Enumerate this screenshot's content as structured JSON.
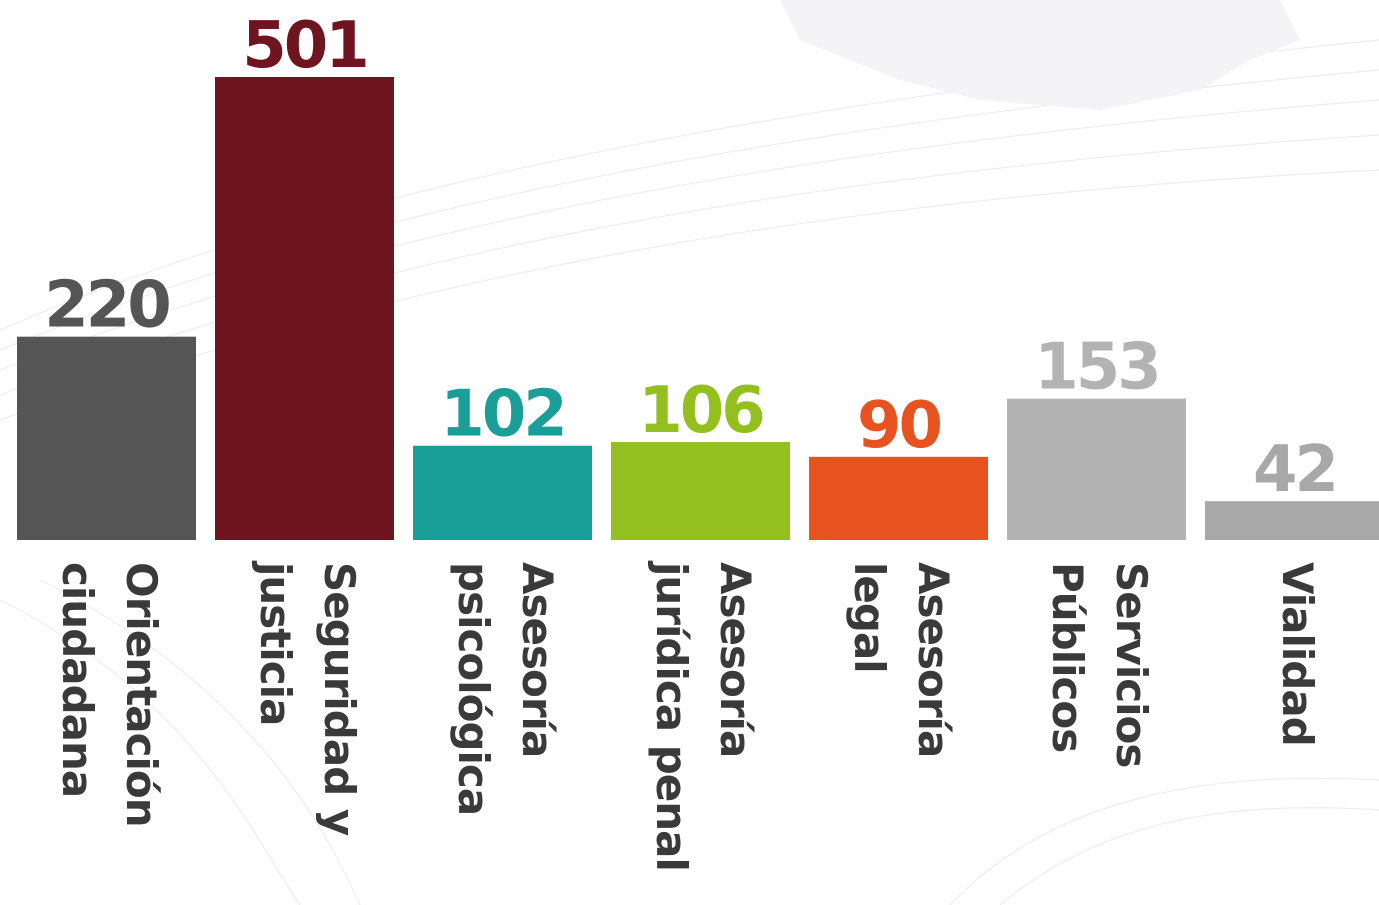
{
  "chart_data": {
    "type": "bar",
    "categories": [
      [
        "Orientación",
        "ciudadana"
      ],
      [
        "Seguridad y",
        "justicia"
      ],
      [
        "Asesoría",
        "psicológica"
      ],
      [
        "Asesoría",
        "jurídica penal"
      ],
      [
        "Asesoría",
        "legal"
      ],
      [
        "Servicios",
        "Públicos"
      ],
      [
        "Vialidad"
      ]
    ],
    "values": [
      220,
      501,
      102,
      106,
      90,
      153,
      42
    ],
    "colors": [
      "#555555",
      "#6e1520",
      "#1a9e98",
      "#93c01f",
      "#e8521e",
      "#b3b3b3",
      "#a8a8a8"
    ]
  }
}
